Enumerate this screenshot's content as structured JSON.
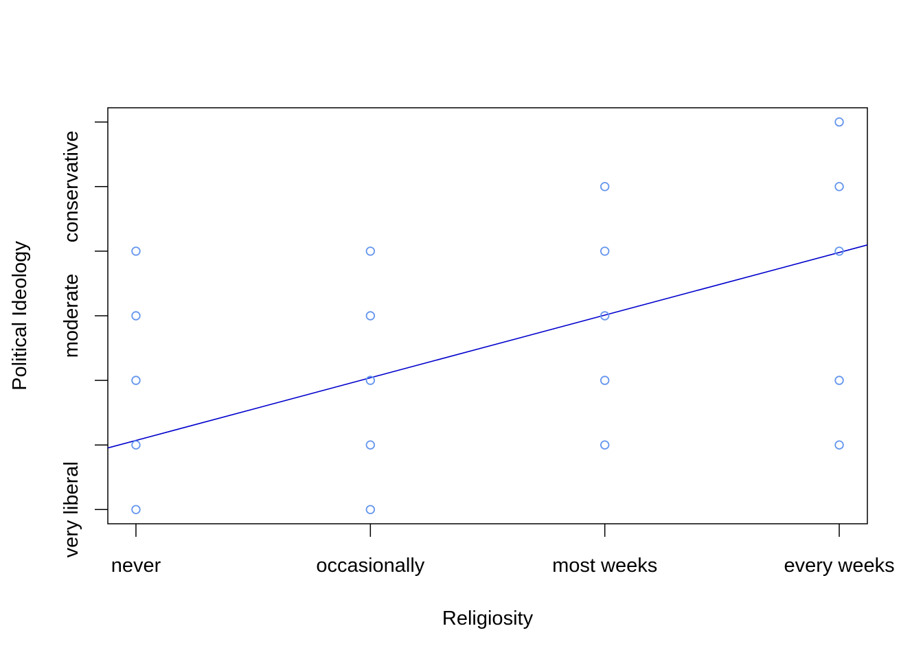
{
  "chart_data": {
    "type": "scatter",
    "title": "",
    "xlabel": "Religiosity",
    "ylabel": "Political Ideology",
    "x_categories": [
      "never",
      "occasionally",
      "most weeks",
      "every weeks"
    ],
    "y_tick_labels": [
      {
        "label": "very liberal",
        "y": 1
      },
      {
        "label": "moderate",
        "y": 4
      },
      {
        "label": "conservative",
        "y": 6
      }
    ],
    "xlim": [
      0.88,
      4.12
    ],
    "ylim": [
      0.78,
      7.22
    ],
    "grid": false,
    "points": [
      {
        "x": 1,
        "y": 1
      },
      {
        "x": 1,
        "y": 2
      },
      {
        "x": 1,
        "y": 3
      },
      {
        "x": 1,
        "y": 4
      },
      {
        "x": 1,
        "y": 5
      },
      {
        "x": 2,
        "y": 1
      },
      {
        "x": 2,
        "y": 2
      },
      {
        "x": 2,
        "y": 3
      },
      {
        "x": 2,
        "y": 4
      },
      {
        "x": 2,
        "y": 5
      },
      {
        "x": 3,
        "y": 2
      },
      {
        "x": 3,
        "y": 3
      },
      {
        "x": 3,
        "y": 4
      },
      {
        "x": 3,
        "y": 5
      },
      {
        "x": 3,
        "y": 6
      },
      {
        "x": 4,
        "y": 2
      },
      {
        "x": 4,
        "y": 3
      },
      {
        "x": 4,
        "y": 5
      },
      {
        "x": 4,
        "y": 6
      },
      {
        "x": 4,
        "y": 7
      }
    ],
    "fit_line": {
      "intercept": 1.1,
      "slope": 0.97
    },
    "colors": {
      "points": "#6495ED",
      "line": "#0000CD",
      "axes": "#000000"
    }
  }
}
